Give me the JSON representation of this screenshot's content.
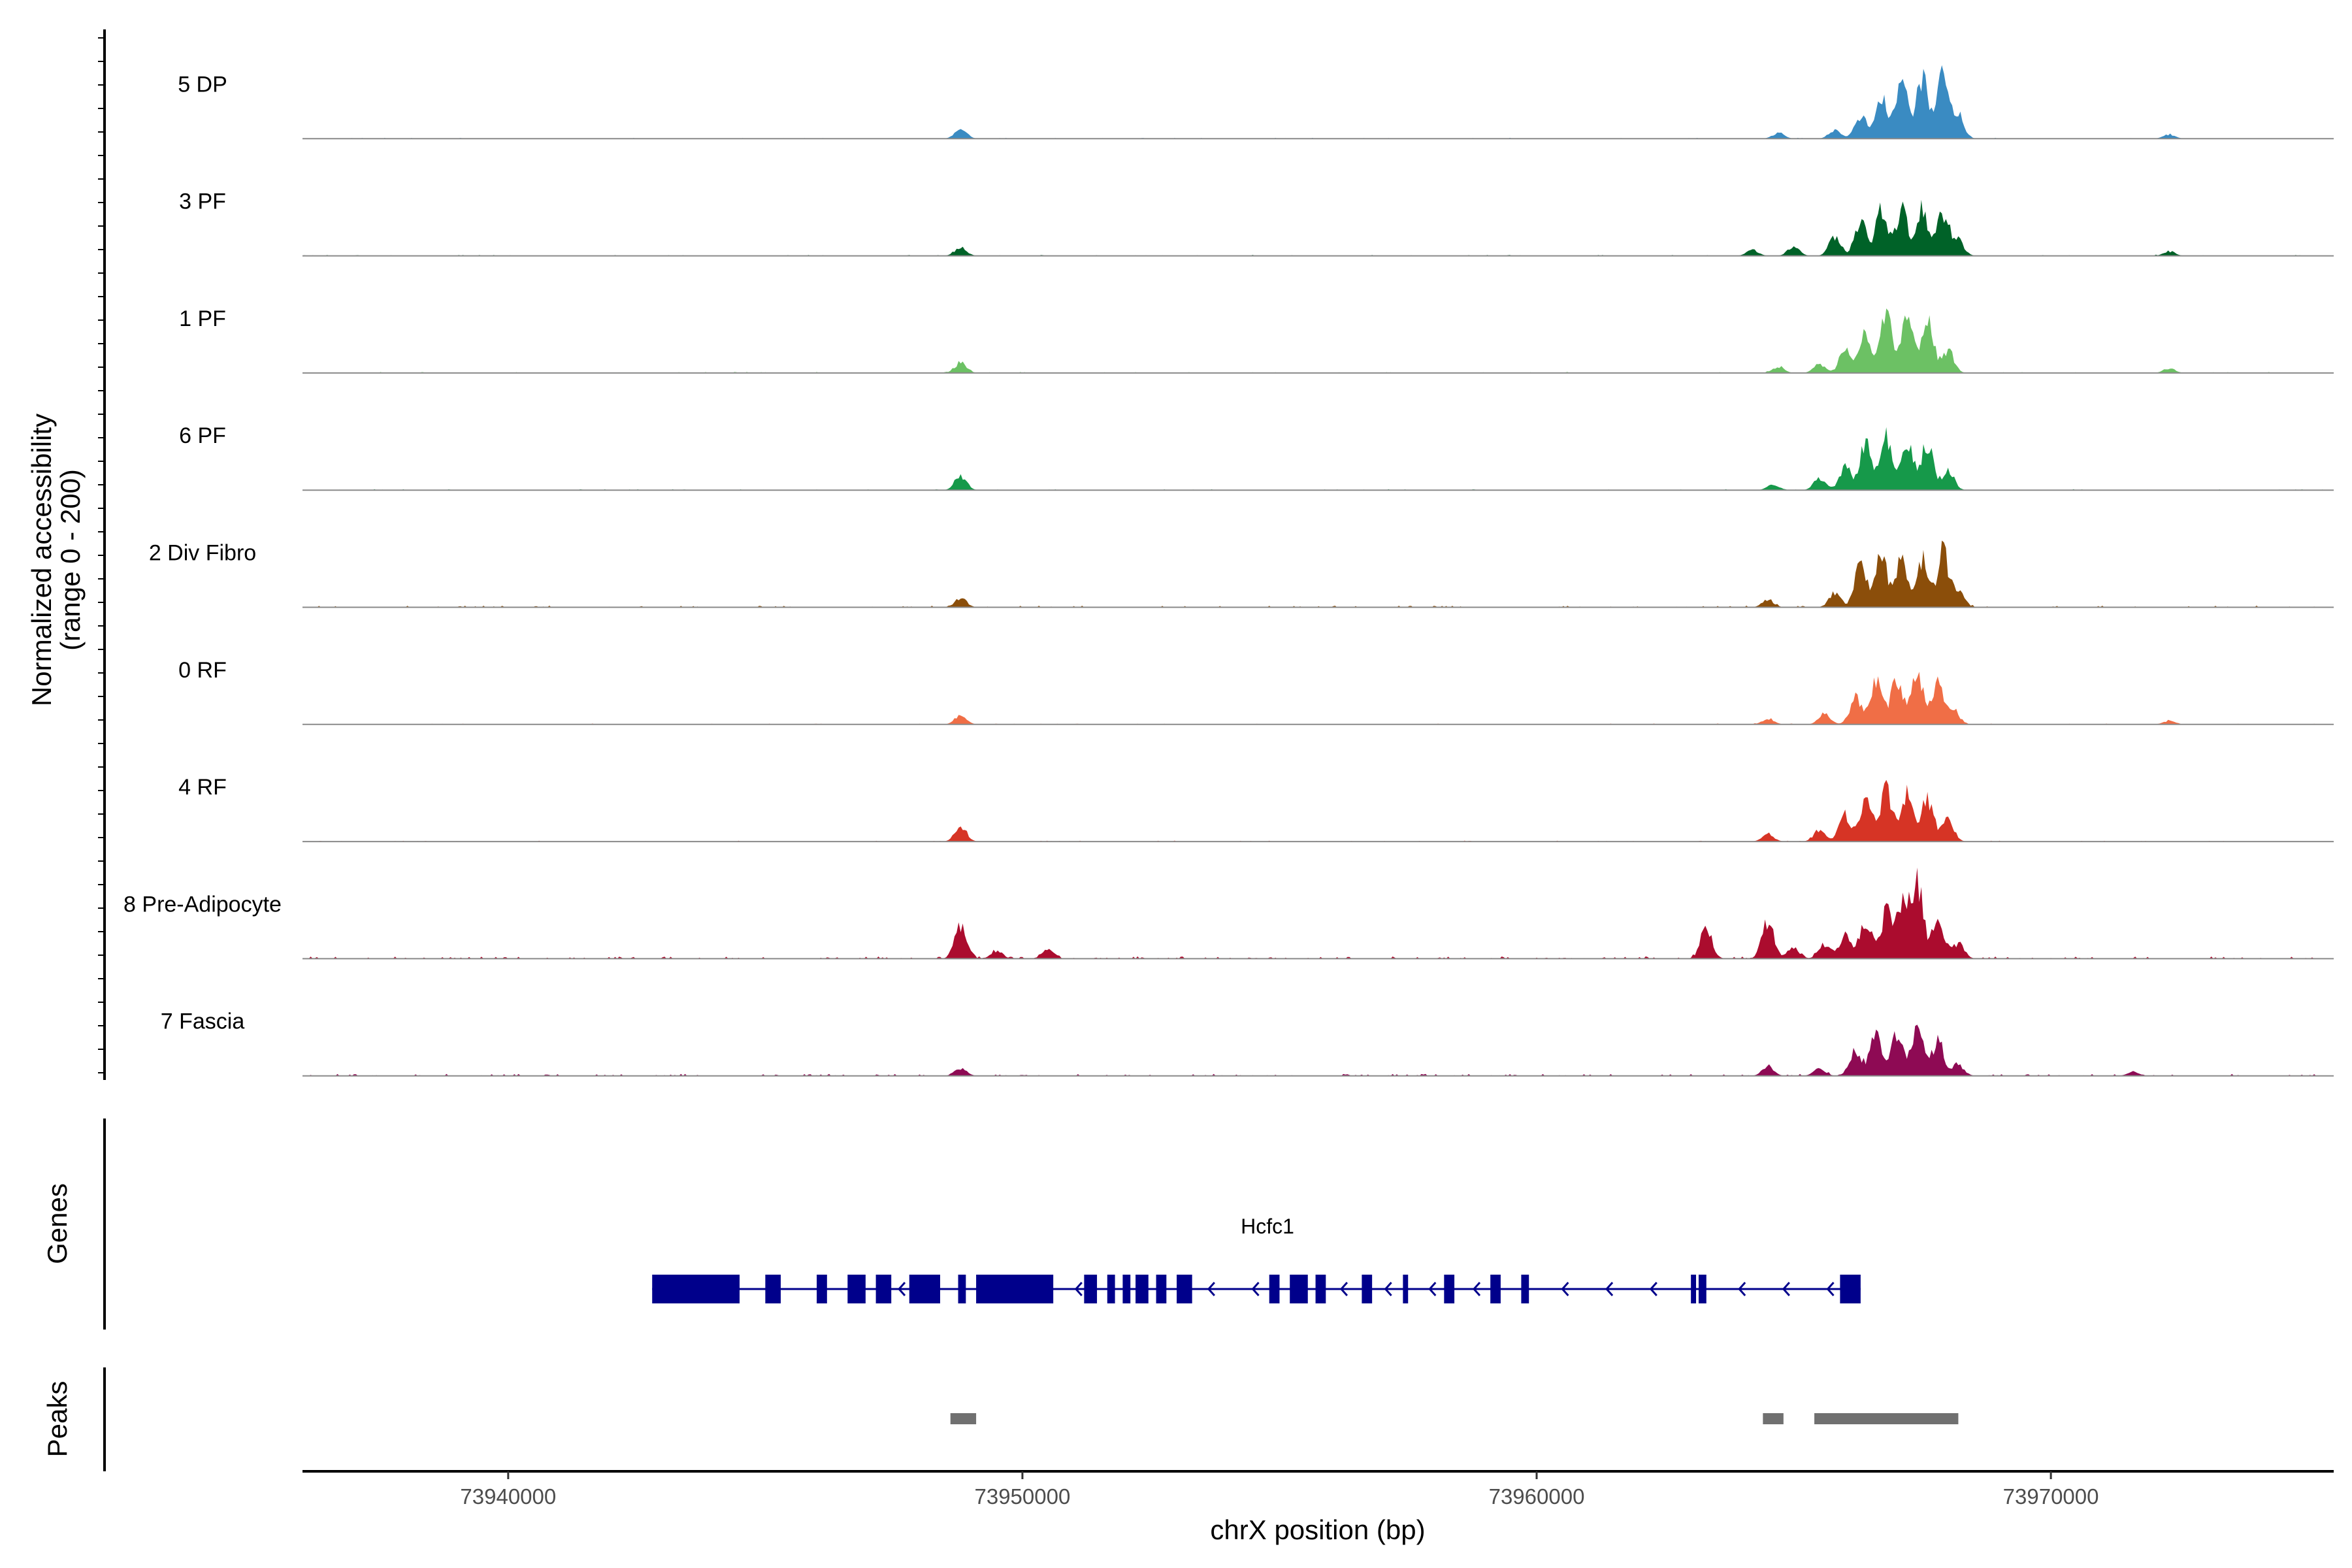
{
  "chart_data": {
    "type": "area",
    "title": "",
    "ylabel": "Normalized accessibility\n(range 0 - 200)",
    "xlabel": "chrX position (bp)",
    "xlim": [
      73936000,
      73975500
    ],
    "ylim": [
      0,
      200
    ],
    "x_ticks": [
      73940000,
      73950000,
      73960000,
      73970000
    ],
    "x_tick_labels": [
      "73940000",
      "73950000",
      "73960000",
      "73970000"
    ],
    "tracks": [
      {
        "name": "5 DP",
        "color": "#3a8bc2",
        "noise": 0.55,
        "peaks": [
          [
            73948800,
            14
          ],
          [
            73964700,
            8
          ],
          [
            73965800,
            12
          ],
          [
            73966300,
            30
          ],
          [
            73966700,
            60
          ],
          [
            73967100,
            75
          ],
          [
            73967500,
            78
          ],
          [
            73967900,
            85
          ],
          [
            73968200,
            30
          ],
          [
            73972300,
            6
          ]
        ]
      },
      {
        "name": "3 PF",
        "color": "#006228",
        "noise": 0.6,
        "peaks": [
          [
            73948800,
            12
          ],
          [
            73964200,
            8
          ],
          [
            73965000,
            12
          ],
          [
            73965800,
            25
          ],
          [
            73966300,
            45
          ],
          [
            73966700,
            58
          ],
          [
            73967100,
            62
          ],
          [
            73967500,
            62
          ],
          [
            73967900,
            58
          ],
          [
            73968200,
            20
          ],
          [
            73972300,
            6
          ]
        ]
      },
      {
        "name": "1 PF",
        "color": "#6cc164",
        "noise": 0.6,
        "peaks": [
          [
            73948800,
            14
          ],
          [
            73964700,
            8
          ],
          [
            73965500,
            12
          ],
          [
            73966000,
            30
          ],
          [
            73966400,
            55
          ],
          [
            73966800,
            75
          ],
          [
            73967200,
            82
          ],
          [
            73967600,
            72
          ],
          [
            73968000,
            30
          ],
          [
            73972300,
            6
          ]
        ]
      },
      {
        "name": "6 PF",
        "color": "#16994a",
        "noise": 0.6,
        "peaks": [
          [
            73948800,
            18
          ],
          [
            73964600,
            8
          ],
          [
            73965500,
            15
          ],
          [
            73966000,
            30
          ],
          [
            73966400,
            62
          ],
          [
            73966800,
            68
          ],
          [
            73967200,
            70
          ],
          [
            73967600,
            62
          ],
          [
            73968000,
            25
          ]
        ]
      },
      {
        "name": "2 Div Fibro",
        "color": "#8b4e0a",
        "noise": 1.0,
        "peaks": [
          [
            73948800,
            12
          ],
          [
            73964500,
            10
          ],
          [
            73965800,
            20
          ],
          [
            73966300,
            55
          ],
          [
            73966700,
            70
          ],
          [
            73967100,
            65
          ],
          [
            73967500,
            62
          ],
          [
            73967900,
            72
          ],
          [
            73968200,
            20
          ]
        ]
      },
      {
        "name": "0 RF",
        "color": "#f06e46",
        "noise": 0.6,
        "peaks": [
          [
            73948800,
            12
          ],
          [
            73964500,
            8
          ],
          [
            73965600,
            15
          ],
          [
            73966200,
            35
          ],
          [
            73966600,
            58
          ],
          [
            73967000,
            60
          ],
          [
            73967400,
            68
          ],
          [
            73967800,
            55
          ],
          [
            73968100,
            20
          ],
          [
            73972300,
            5
          ]
        ]
      },
      {
        "name": "4 RF",
        "color": "#d63425",
        "noise": 0.6,
        "peaks": [
          [
            73948800,
            20
          ],
          [
            73964500,
            10
          ],
          [
            73965500,
            15
          ],
          [
            73966000,
            35
          ],
          [
            73966400,
            60
          ],
          [
            73966800,
            70
          ],
          [
            73967200,
            62
          ],
          [
            73967600,
            58
          ],
          [
            73968000,
            30
          ]
        ]
      },
      {
        "name": "8 Pre-Adipocyte",
        "color": "#ab0c2e",
        "noise": 1.4,
        "peaks": [
          [
            73948800,
            45
          ],
          [
            73949500,
            10
          ],
          [
            73950500,
            12
          ],
          [
            73963300,
            40
          ],
          [
            73964500,
            50
          ],
          [
            73965000,
            15
          ],
          [
            73965600,
            20
          ],
          [
            73966000,
            30
          ],
          [
            73966400,
            50
          ],
          [
            73966800,
            60
          ],
          [
            73967100,
            75
          ],
          [
            73967400,
            100
          ],
          [
            73967800,
            55
          ],
          [
            73968200,
            20
          ]
        ]
      },
      {
        "name": "7 Fascia",
        "color": "#8e0a54",
        "noise": 1.2,
        "peaks": [
          [
            73948800,
            10
          ],
          [
            73964500,
            12
          ],
          [
            73965500,
            10
          ],
          [
            73966200,
            35
          ],
          [
            73966600,
            55
          ],
          [
            73967000,
            58
          ],
          [
            73967400,
            62
          ],
          [
            73967800,
            45
          ],
          [
            73968200,
            15
          ],
          [
            73971600,
            5
          ]
        ]
      }
    ],
    "gene": {
      "name": "Hcfc1",
      "color": "#00008b",
      "strand": "-",
      "start": 73942800,
      "end": 73966300,
      "exons": [
        [
          73942800,
          73944500
        ],
        [
          73945000,
          73945300
        ],
        [
          73946000,
          73946200
        ],
        [
          73946600,
          73946950
        ],
        [
          73947150,
          73947450
        ],
        [
          73947800,
          73948400
        ],
        [
          73948750,
          73948900
        ],
        [
          73949100,
          73950600
        ],
        [
          73951200,
          73951450
        ],
        [
          73951650,
          73951800
        ],
        [
          73951950,
          73952100
        ],
        [
          73952200,
          73952450
        ],
        [
          73952600,
          73952800
        ],
        [
          73953000,
          73953300
        ],
        [
          73954800,
          73955000
        ],
        [
          73955200,
          73955550
        ],
        [
          73955700,
          73955900
        ],
        [
          73956600,
          73956800
        ],
        [
          73957400,
          73957500
        ],
        [
          73958200,
          73958400
        ],
        [
          73959100,
          73959300
        ],
        [
          73959700,
          73959850
        ],
        [
          73963000,
          73963100
        ],
        [
          73963150,
          73963300
        ],
        [
          73965900,
          73966300
        ]
      ]
    },
    "peaks_track": {
      "label": "Peaks",
      "color": "#707070",
      "regions": [
        [
          73948600,
          73949100
        ],
        [
          73964400,
          73964800
        ],
        [
          73965400,
          73968200
        ]
      ]
    },
    "genes_label": "Genes"
  }
}
